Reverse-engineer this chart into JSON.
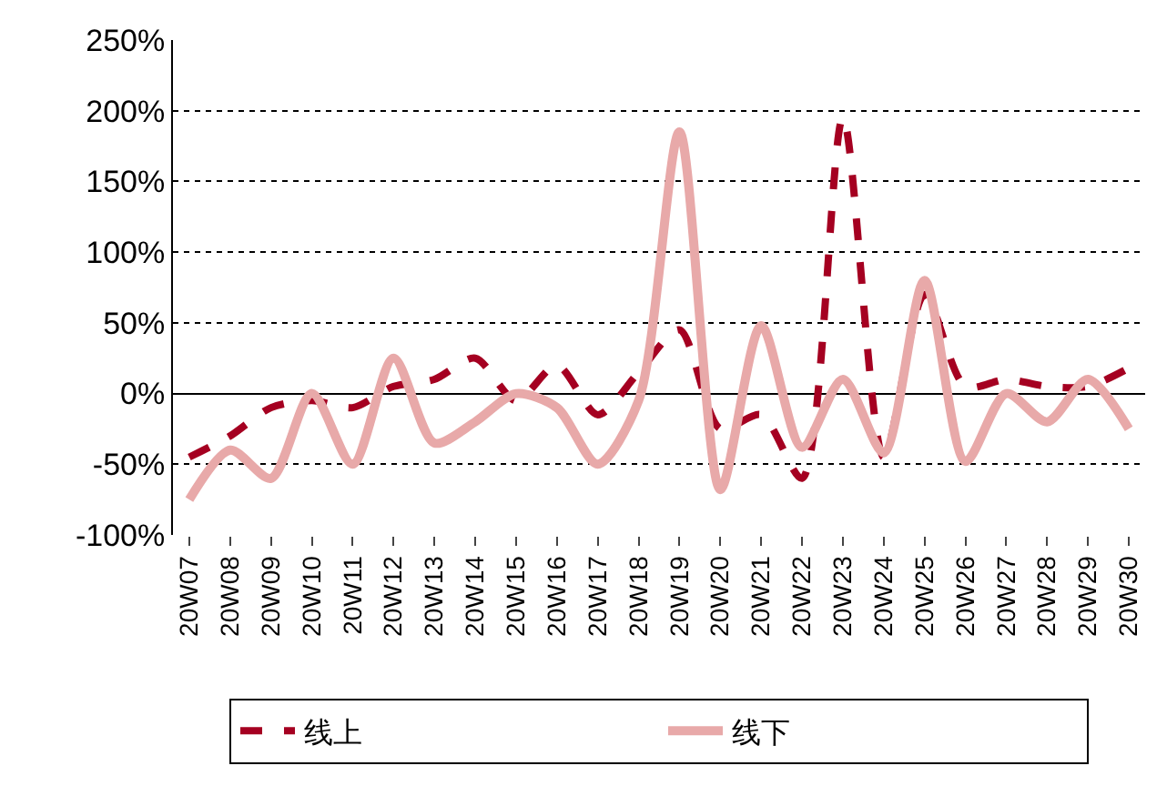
{
  "chart_data": {
    "type": "line",
    "categories": [
      "20W07",
      "20W08",
      "20W09",
      "20W10",
      "20W11",
      "20W12",
      "20W13",
      "20W14",
      "20W15",
      "20W16",
      "20W17",
      "20W18",
      "20W19",
      "20W20",
      "20W21",
      "20W22",
      "20W23",
      "20W24",
      "20W25",
      "20W26",
      "20W27",
      "20W28",
      "20W29",
      "20W30"
    ],
    "series": [
      {
        "name": "线上",
        "color": "#a50021",
        "line_style": "dashed",
        "values": [
          -45,
          -30,
          -10,
          -5,
          -10,
          5,
          10,
          25,
          -5,
          20,
          -15,
          15,
          45,
          -25,
          -15,
          -60,
          195,
          -45,
          70,
          5,
          10,
          5,
          5,
          18
        ]
      },
      {
        "name": "线下",
        "color": "#e8a9a9",
        "line_style": "solid",
        "values": [
          -75,
          -40,
          -60,
          0,
          -50,
          25,
          -35,
          -20,
          0,
          -10,
          -50,
          -5,
          185,
          -68,
          48,
          -38,
          10,
          -42,
          80,
          -48,
          0,
          -20,
          10,
          -25
        ]
      }
    ],
    "ylim": [
      -100,
      250
    ],
    "yticks": [
      {
        "value": -100,
        "label": "-100%"
      },
      {
        "value": -50,
        "label": "-50%"
      },
      {
        "value": 0,
        "label": "0%"
      },
      {
        "value": 50,
        "label": "50%"
      },
      {
        "value": 100,
        "label": "100%"
      },
      {
        "value": 150,
        "label": "150%"
      },
      {
        "value": 200,
        "label": "200%"
      },
      {
        "value": 250,
        "label": "250%"
      }
    ],
    "grid": "y",
    "legend": "bottom",
    "marker": "none"
  }
}
